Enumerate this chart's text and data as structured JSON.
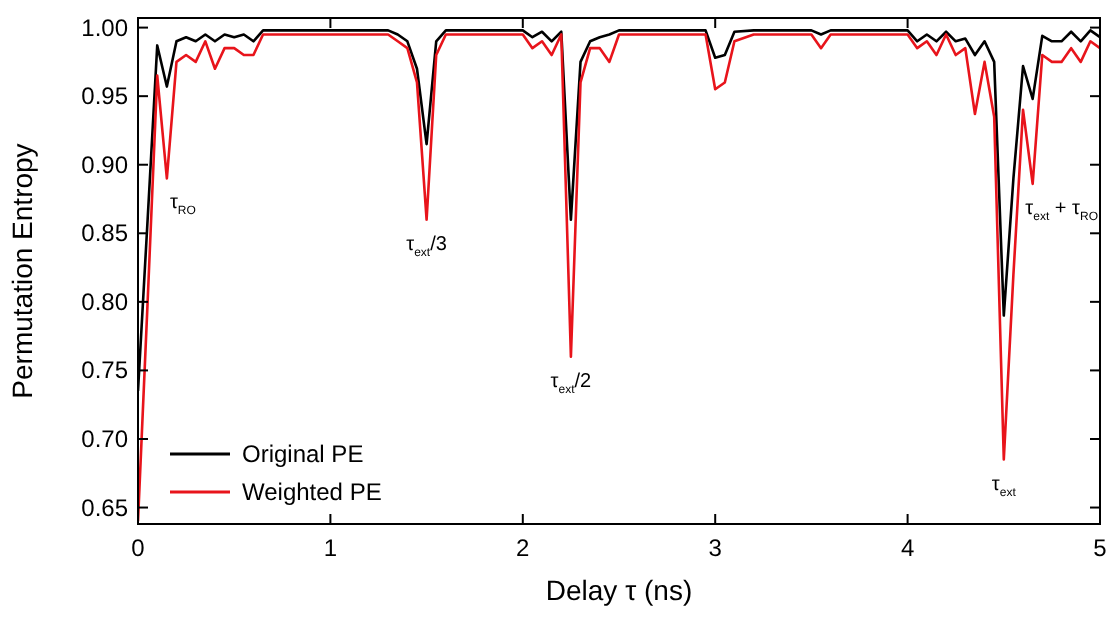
{
  "chart_data": {
    "type": "line",
    "xlabel": "Delay τ (ns)",
    "ylabel": "Permutation Entropy",
    "x": [
      0,
      0.05,
      0.1,
      0.15,
      0.2,
      0.25,
      0.3,
      0.35,
      0.4,
      0.45,
      0.5,
      0.55,
      0.6,
      0.65,
      0.7,
      0.8,
      0.9,
      1.0,
      1.1,
      1.2,
      1.3,
      1.35,
      1.4,
      1.45,
      1.5,
      1.55,
      1.6,
      1.7,
      1.8,
      1.9,
      2.0,
      2.05,
      2.1,
      2.15,
      2.2,
      2.25,
      2.3,
      2.35,
      2.4,
      2.45,
      2.5,
      2.6,
      2.7,
      2.8,
      2.9,
      2.95,
      3.0,
      3.05,
      3.1,
      3.2,
      3.3,
      3.4,
      3.5,
      3.55,
      3.6,
      3.7,
      3.8,
      3.9,
      4.0,
      4.05,
      4.1,
      4.15,
      4.2,
      4.25,
      4.3,
      4.35,
      4.4,
      4.45,
      4.5,
      4.55,
      4.6,
      4.65,
      4.7,
      4.75,
      4.8,
      4.85,
      4.9,
      4.95,
      5.0
    ],
    "series": [
      {
        "name": "Original PE",
        "color": "#000000",
        "values": [
          0.735,
          0.86,
          0.987,
          0.957,
          0.99,
          0.993,
          0.99,
          0.995,
          0.99,
          0.995,
          0.993,
          0.995,
          0.99,
          0.998,
          0.998,
          0.998,
          0.998,
          0.998,
          0.998,
          0.998,
          0.998,
          0.995,
          0.99,
          0.97,
          0.915,
          0.99,
          0.998,
          0.998,
          0.998,
          0.998,
          0.998,
          0.993,
          0.997,
          0.99,
          0.997,
          0.86,
          0.975,
          0.99,
          0.993,
          0.995,
          0.998,
          0.998,
          0.998,
          0.998,
          0.998,
          0.998,
          0.978,
          0.98,
          0.997,
          0.998,
          0.998,
          0.998,
          0.998,
          0.995,
          0.998,
          0.998,
          0.998,
          0.998,
          0.998,
          0.99,
          0.995,
          0.99,
          0.997,
          0.99,
          0.992,
          0.98,
          0.99,
          0.975,
          0.79,
          0.89,
          0.972,
          0.948,
          0.994,
          0.99,
          0.99,
          0.997,
          0.99,
          0.998,
          0.993
        ]
      },
      {
        "name": "Weighted PE",
        "color": "#e8141b",
        "values": [
          0.64,
          0.8,
          0.965,
          0.89,
          0.975,
          0.98,
          0.975,
          0.99,
          0.97,
          0.985,
          0.985,
          0.98,
          0.98,
          0.995,
          0.995,
          0.995,
          0.995,
          0.995,
          0.995,
          0.995,
          0.995,
          0.99,
          0.985,
          0.96,
          0.86,
          0.98,
          0.995,
          0.995,
          0.995,
          0.995,
          0.995,
          0.985,
          0.99,
          0.98,
          0.995,
          0.76,
          0.96,
          0.985,
          0.985,
          0.975,
          0.995,
          0.995,
          0.995,
          0.995,
          0.995,
          0.995,
          0.955,
          0.96,
          0.99,
          0.995,
          0.995,
          0.995,
          0.995,
          0.985,
          0.995,
          0.995,
          0.995,
          0.995,
          0.995,
          0.985,
          0.99,
          0.98,
          0.995,
          0.98,
          0.985,
          0.937,
          0.975,
          0.935,
          0.685,
          0.82,
          0.94,
          0.886,
          0.98,
          0.975,
          0.975,
          0.985,
          0.975,
          0.99,
          0.985
        ]
      }
    ],
    "xlim": [
      0,
      5
    ],
    "xticks": [
      0,
      1,
      2,
      3,
      4,
      5
    ],
    "ylim": [
      0.638,
      1.007
    ],
    "yticks": [
      {
        "value": 0.65,
        "label": "0.65"
      },
      {
        "value": 0.7,
        "label": "0.70"
      },
      {
        "value": 0.75,
        "label": "0.75"
      },
      {
        "value": 0.8,
        "label": "0.80"
      },
      {
        "value": 0.85,
        "label": "0.85"
      },
      {
        "value": 0.9,
        "label": "0.90"
      },
      {
        "value": 0.95,
        "label": "0.95"
      },
      {
        "value": 1.0,
        "label": "1.00"
      }
    ],
    "annotations": [
      {
        "text": "τ$_{RO}$",
        "x": 0.15,
        "y": 0.89
      },
      {
        "text": "τ$_{ext}$/3",
        "x": 1.5,
        "y": 0.86
      },
      {
        "text": "τ$_{ext}$/2",
        "x": 2.25,
        "y": 0.76
      },
      {
        "text": "τ$_{ext}$",
        "x": 4.5,
        "y": 0.685
      },
      {
        "text": "τ$_{ext}$ + τ$_{RO}$",
        "x": 4.65,
        "y": 0.886
      }
    ],
    "legend": "bottom left",
    "grid": false,
    "marker": "none",
    "line_style": "solid"
  }
}
